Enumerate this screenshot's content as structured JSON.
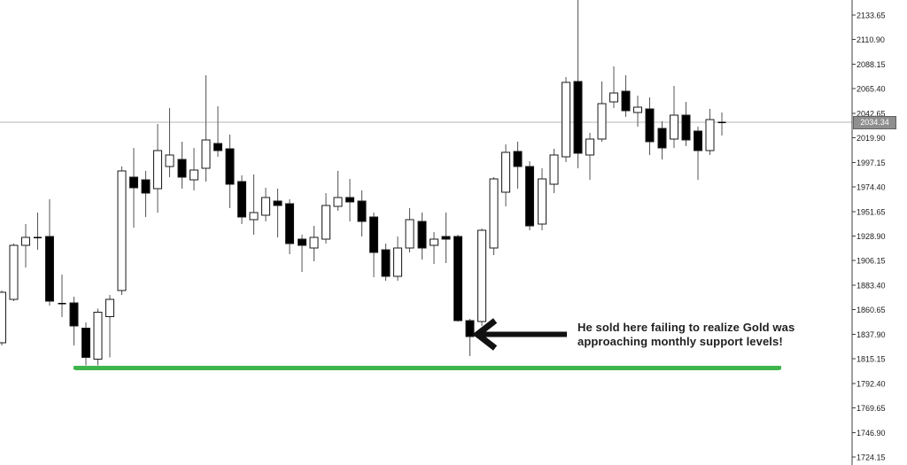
{
  "chart_data": {
    "type": "candlestick",
    "title": "",
    "y_axis": {
      "side": "right",
      "tick_step": 22.75,
      "ticks": [
        "2133.65",
        "2110.90",
        "2088.15",
        "2065.40",
        "2042.65",
        "2019.90",
        "1997.15",
        "1974.40",
        "1951.65",
        "1928.90",
        "1906.15",
        "1883.40",
        "1860.65",
        "1837.90",
        "1815.15",
        "1792.40",
        "1769.65",
        "1746.90",
        "1724.15"
      ],
      "range_top": 2147.6,
      "range_bottom": 1717.0
    },
    "current_price": {
      "value": "2034.34",
      "label_bg": "#8f8f8f",
      "label_text_color": "#ffffff",
      "line_color": "#b5b5b5"
    },
    "support_line": {
      "price": 1806.8,
      "color": "#3eb54b",
      "meaning": "monthly support level"
    },
    "annotation": {
      "line1": "He sold here failing to realize Gold was",
      "line2": "approaching monthly support levels!",
      "color": "#1f1f1f"
    },
    "arrow": {
      "color": "#111111",
      "points_at_candle_index": 39
    },
    "colors": {
      "bull_fill": "#ffffff",
      "bear_fill": "#000000",
      "outline": "#1a1a1a",
      "wick": "#555555",
      "axis_line": "#3f3f3f",
      "label_color": "#1a1a1a",
      "background": "#ffffff"
    },
    "candles": [
      {
        "o": 1829.9,
        "h": 1878.3,
        "l": 1827.4,
        "c": 1876.6
      },
      {
        "o": 1870.1,
        "h": 1921.8,
        "l": 1868.4,
        "c": 1920.1
      },
      {
        "o": 1920.1,
        "h": 1939.8,
        "l": 1899.6,
        "c": 1927.5
      },
      {
        "o": 1928.3,
        "h": 1950.5,
        "l": 1916.0,
        "c": 1926.7
      },
      {
        "o": 1928.3,
        "h": 1962.8,
        "l": 1864.3,
        "c": 1868.4
      },
      {
        "o": 1866.8,
        "h": 1893.0,
        "l": 1853.7,
        "c": 1865.6
      },
      {
        "o": 1866.8,
        "h": 1872.5,
        "l": 1827.4,
        "c": 1845.5
      },
      {
        "o": 1843.7,
        "h": 1848.7,
        "l": 1809.2,
        "c": 1816.6
      },
      {
        "o": 1815.0,
        "h": 1861.8,
        "l": 1809.2,
        "c": 1858.5
      },
      {
        "o": 1854.4,
        "h": 1874.2,
        "l": 1816.6,
        "c": 1870.1
      },
      {
        "o": 1878.3,
        "h": 1993.2,
        "l": 1874.2,
        "c": 1989.1
      },
      {
        "o": 1983.4,
        "h": 2010.5,
        "l": 1936.6,
        "c": 1973.5
      },
      {
        "o": 1980.9,
        "h": 1989.1,
        "l": 1946.4,
        "c": 1968.6
      },
      {
        "o": 1972.7,
        "h": 2032.6,
        "l": 1950.5,
        "c": 2008.0
      },
      {
        "o": 1993.2,
        "h": 2047.4,
        "l": 1983.4,
        "c": 2003.9
      },
      {
        "o": 1999.8,
        "h": 2016.2,
        "l": 1972.7,
        "c": 1983.4
      },
      {
        "o": 1980.9,
        "h": 2010.5,
        "l": 1971.0,
        "c": 1989.9
      },
      {
        "o": 1991.6,
        "h": 2077.8,
        "l": 1979.3,
        "c": 2017.9
      },
      {
        "o": 2014.6,
        "h": 2049.1,
        "l": 2002.3,
        "c": 2008.0
      },
      {
        "o": 2009.7,
        "h": 2022.8,
        "l": 1954.6,
        "c": 1976.8
      },
      {
        "o": 1979.3,
        "h": 1985.0,
        "l": 1939.8,
        "c": 1946.4
      },
      {
        "o": 1943.9,
        "h": 1985.8,
        "l": 1930.0,
        "c": 1950.5
      },
      {
        "o": 1948.1,
        "h": 1973.5,
        "l": 1942.3,
        "c": 1964.5
      },
      {
        "o": 1961.2,
        "h": 1972.7,
        "l": 1927.5,
        "c": 1957.1
      },
      {
        "o": 1958.7,
        "h": 1962.8,
        "l": 1911.9,
        "c": 1921.8
      },
      {
        "o": 1925.9,
        "h": 1930.0,
        "l": 1895.5,
        "c": 1920.1
      },
      {
        "o": 1917.7,
        "h": 1938.2,
        "l": 1905.4,
        "c": 1927.5
      },
      {
        "o": 1925.9,
        "h": 1968.6,
        "l": 1921.8,
        "c": 1957.1
      },
      {
        "o": 1956.3,
        "h": 1989.1,
        "l": 1952.2,
        "c": 1964.5
      },
      {
        "o": 1964.5,
        "h": 1981.7,
        "l": 1942.3,
        "c": 1960.4
      },
      {
        "o": 1961.2,
        "h": 1971.0,
        "l": 1928.3,
        "c": 1942.3
      },
      {
        "o": 1946.4,
        "h": 1950.5,
        "l": 1890.6,
        "c": 1913.6
      },
      {
        "o": 1916.0,
        "h": 1921.8,
        "l": 1887.3,
        "c": 1891.4
      },
      {
        "o": 1891.4,
        "h": 1928.3,
        "l": 1887.3,
        "c": 1917.7
      },
      {
        "o": 1917.7,
        "h": 1954.6,
        "l": 1913.6,
        "c": 1943.9
      },
      {
        "o": 1942.3,
        "h": 1950.5,
        "l": 1907.0,
        "c": 1917.7
      },
      {
        "o": 1920.1,
        "h": 1932.4,
        "l": 1902.9,
        "c": 1925.9
      },
      {
        "o": 1928.3,
        "h": 1950.5,
        "l": 1903.7,
        "c": 1925.9
      },
      {
        "o": 1928.3,
        "h": 1930.0,
        "l": 1849.6,
        "c": 1850.4
      },
      {
        "o": 1850.4,
        "h": 1852.0,
        "l": 1817.5,
        "c": 1835.6
      },
      {
        "o": 1849.6,
        "h": 1935.7,
        "l": 1845.5,
        "c": 1934.1
      },
      {
        "o": 1917.7,
        "h": 1983.4,
        "l": 1911.1,
        "c": 1981.7
      },
      {
        "o": 1969.4,
        "h": 2013.8,
        "l": 1956.3,
        "c": 2006.4
      },
      {
        "o": 2007.2,
        "h": 2016.2,
        "l": 1972.7,
        "c": 1993.2
      },
      {
        "o": 1993.2,
        "h": 1998.2,
        "l": 1934.1,
        "c": 1938.2
      },
      {
        "o": 1939.8,
        "h": 1991.6,
        "l": 1934.1,
        "c": 1981.7
      },
      {
        "o": 1976.8,
        "h": 2009.7,
        "l": 1968.6,
        "c": 2003.9
      },
      {
        "o": 2002.3,
        "h": 2076.2,
        "l": 1997.3,
        "c": 2071.2
      },
      {
        "o": 2072.1,
        "h": 2147.6,
        "l": 1991.6,
        "c": 2005.6
      },
      {
        "o": 2003.9,
        "h": 2024.4,
        "l": 1980.9,
        "c": 2018.7
      },
      {
        "o": 2018.7,
        "h": 2072.1,
        "l": 2016.2,
        "c": 2051.5
      },
      {
        "o": 2053.2,
        "h": 2086.0,
        "l": 2047.4,
        "c": 2061.4
      },
      {
        "o": 2063.0,
        "h": 2077.8,
        "l": 2039.2,
        "c": 2044.9
      },
      {
        "o": 2043.3,
        "h": 2058.9,
        "l": 2030.2,
        "c": 2048.2
      },
      {
        "o": 2046.6,
        "h": 2057.3,
        "l": 2003.9,
        "c": 2016.2
      },
      {
        "o": 2028.5,
        "h": 2035.1,
        "l": 1999.8,
        "c": 2010.5
      },
      {
        "o": 2018.7,
        "h": 2068.0,
        "l": 2010.5,
        "c": 2040.8
      },
      {
        "o": 2040.8,
        "h": 2053.2,
        "l": 2012.1,
        "c": 2017.9
      },
      {
        "o": 2026.1,
        "h": 2030.2,
        "l": 1980.9,
        "c": 2008.0
      },
      {
        "o": 2008.0,
        "h": 2046.6,
        "l": 2003.9,
        "c": 2036.7
      },
      {
        "o": 2035.1,
        "h": 2043.3,
        "l": 2022.0,
        "c": 2033.5
      }
    ]
  }
}
